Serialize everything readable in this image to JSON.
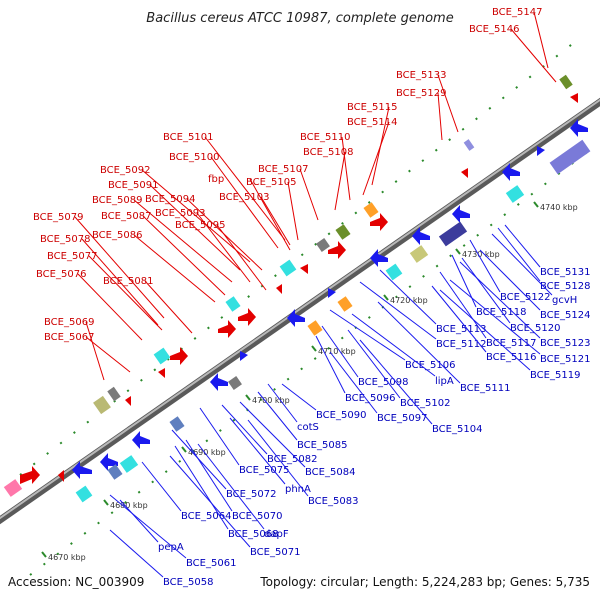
{
  "title": "Bacillus cereus ATCC 10987, complete genome",
  "footer": {
    "accession": "Accession: NC_003909",
    "topology": "Topology: circular; Length: 5,224,283 bp; Genes: 5,735"
  },
  "colors": {
    "forward_strand": "#e30000",
    "reverse_strand": "#1a1aee",
    "backbone": "#8a8a8a",
    "tick": "#2b8a2b",
    "label_top": "#cc0000",
    "label_bottom": "#0000bb"
  },
  "ticks": [
    "4670 kbp",
    "4680 kbp",
    "4690 kbp",
    "4700 kbp",
    "4710 kbp",
    "4720 kbp",
    "4730 kbp",
    "4740 kbp"
  ],
  "top_labels": [
    "BCE_5147",
    "BCE_5146",
    "BCE_5133",
    "BCE_5129",
    "BCE_5115",
    "BCE_5114",
    "BCE_5110",
    "BCE_5108",
    "BCE_5107",
    "BCE_5101",
    "BCE_5100",
    "fbp",
    "BCE_5105",
    "BCE_5103",
    "BCE_5092",
    "BCE_5091",
    "BCE_5094",
    "BCE_5089",
    "BCE_5093",
    "BCE_5087",
    "BCE_5095",
    "BCE_5079",
    "BCE_5086",
    "BCE_5078",
    "BCE_5077",
    "BCE_5076",
    "BCE_5081",
    "BCE_5069",
    "BCE_5067"
  ],
  "bottom_labels": [
    "BCE_5131",
    "BCE_5128",
    "gcvH",
    "BCE_5122",
    "BCE_5124",
    "BCE_5118",
    "BCE_5120",
    "BCE_5113",
    "BCE_5117",
    "BCE_5123",
    "BCE_5112",
    "BCE_5116",
    "BCE_5121",
    "BCE_5119",
    "BCE_5106",
    "lipA",
    "BCE_5111",
    "BCE_5098",
    "BCE_5096",
    "BCE_5102",
    "BCE_5090",
    "BCE_5097",
    "BCE_5104",
    "cotS",
    "BCE_5085",
    "BCE_5082",
    "BCE_5084",
    "BCE_5075",
    "phnA",
    "BCE_5083",
    "BCE_5072",
    "BCE_5064",
    "BCE_5070",
    "BCE_5068",
    "dapF",
    "BCE_5071",
    "pepA",
    "BCE_5061",
    "BCE_5058"
  ]
}
